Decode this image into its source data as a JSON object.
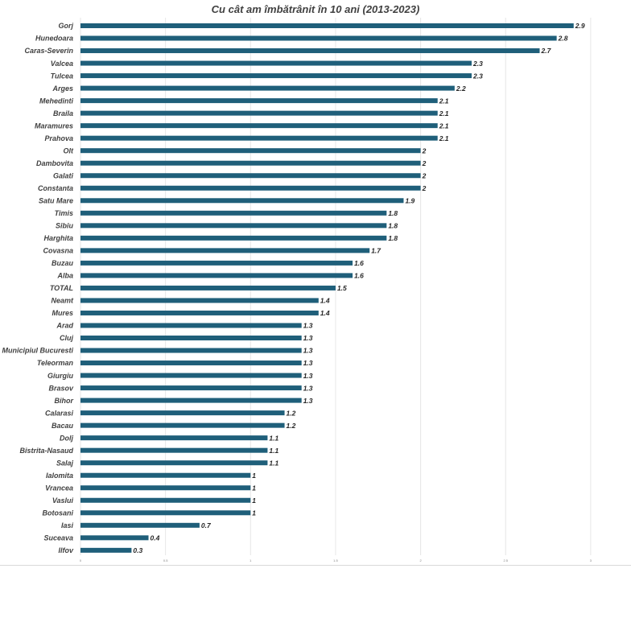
{
  "chart_data": {
    "type": "bar",
    "orientation": "horizontal",
    "title": "Cu cât am îmbătrânit în 10 ani (2013-2023)",
    "xlabel": "",
    "ylabel": "",
    "xlim": [
      0,
      3
    ],
    "xticks": [
      0,
      0.5,
      1,
      1.5,
      2,
      2.5,
      3
    ],
    "grid": true,
    "legend": "none",
    "bar_color": "#1f5f7a",
    "categories": [
      "Gorj",
      "Hunedoara",
      "Caras-Severin",
      "Valcea",
      "Tulcea",
      "Arges",
      "Mehedinti",
      "Braila",
      "Maramures",
      "Prahova",
      "Olt",
      "Dambovita",
      "Galati",
      "Constanta",
      "Satu Mare",
      "Timis",
      "Sibiu",
      "Harghita",
      "Covasna",
      "Buzau",
      "Alba",
      "TOTAL",
      "Neamt",
      "Mures",
      "Arad",
      "Cluj",
      "Municipiul Bucuresti",
      "Teleorman",
      "Giurgiu",
      "Brasov",
      "Bihor",
      "Calarasi",
      "Bacau",
      "Dolj",
      "Bistrita-Nasaud",
      "Salaj",
      "Ialomita",
      "Vrancea",
      "Vaslui",
      "Botosani",
      "Iasi",
      "Suceava",
      "Ilfov"
    ],
    "values": [
      2.9,
      2.8,
      2.7,
      2.3,
      2.3,
      2.2,
      2.1,
      2.1,
      2.1,
      2.1,
      2,
      2,
      2,
      2,
      1.9,
      1.8,
      1.8,
      1.8,
      1.7,
      1.6,
      1.6,
      1.5,
      1.4,
      1.4,
      1.3,
      1.3,
      1.3,
      1.3,
      1.3,
      1.3,
      1.3,
      1.2,
      1.2,
      1.1,
      1.1,
      1.1,
      1,
      1,
      1,
      1,
      0.7,
      0.4,
      0.3
    ]
  }
}
